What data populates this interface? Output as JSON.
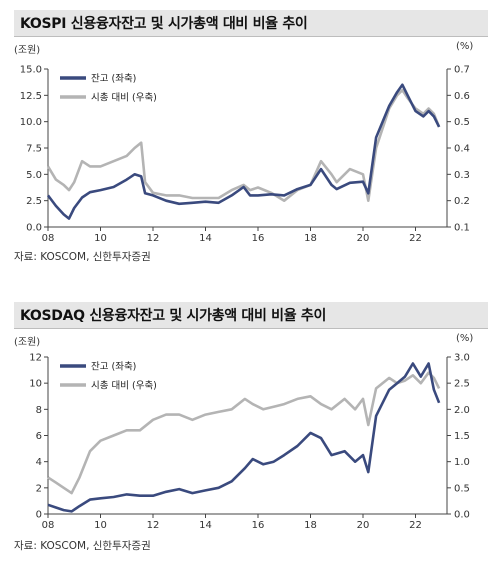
{
  "colors": {
    "navy": "#3a4a7e",
    "gray": "#b4b4b4",
    "axis": "#444444",
    "title_bg": "#e6e6e6"
  },
  "charts": [
    {
      "title": "KOSPI 신용융자잔고 및 시가총액 대비 비율 추이",
      "left_unit": "(조원)",
      "right_unit": "(%)",
      "source": "자료: KOSCOM, 신한투자증권"
    },
    {
      "title": "KOSDAQ 신용융자잔고 및 시가총액 대비 비율 추이",
      "left_unit": "(조원)",
      "right_unit": "(%)",
      "source": "자료: KOSCOM, 신한투자증권"
    }
  ],
  "chart_data": [
    {
      "type": "line",
      "title": "KOSPI 신용융자잔고 및 시가총액 대비 비율 추이",
      "x_ticks": [
        "08",
        "10",
        "12",
        "14",
        "16",
        "18",
        "20",
        "22"
      ],
      "xlim": [
        2008,
        2023.2
      ],
      "y_left_ticks": [
        "0.0",
        "2.5",
        "5.0",
        "7.5",
        "10.0",
        "12.5",
        "15.0"
      ],
      "ylim_left": [
        0,
        15
      ],
      "y_right_ticks": [
        "0.1",
        "0.2",
        "0.3",
        "0.4",
        "0.5",
        "0.6",
        "0.7"
      ],
      "ylim_right": [
        0.1,
        0.7
      ],
      "legend": {
        "position": "top-left"
      },
      "series": [
        {
          "name": "잔고 (좌축)",
          "axis": "left",
          "color": "#3a4a7e",
          "x": [
            2008.0,
            2008.3,
            2008.6,
            2008.8,
            2009.0,
            2009.3,
            2009.6,
            2010.0,
            2010.5,
            2011.0,
            2011.3,
            2011.55,
            2011.7,
            2012.0,
            2012.5,
            2013.0,
            2013.5,
            2014.0,
            2014.5,
            2015.0,
            2015.45,
            2015.7,
            2016.0,
            2016.5,
            2017.0,
            2017.5,
            2018.0,
            2018.4,
            2018.8,
            2019.0,
            2019.5,
            2020.0,
            2020.2,
            2020.5,
            2021.0,
            2021.3,
            2021.5,
            2021.7,
            2022.0,
            2022.3,
            2022.5,
            2022.7,
            2022.9
          ],
          "y": [
            3.0,
            2.0,
            1.2,
            0.8,
            1.8,
            2.8,
            3.3,
            3.5,
            3.8,
            4.5,
            5.0,
            4.8,
            3.2,
            3.0,
            2.5,
            2.2,
            2.3,
            2.4,
            2.3,
            3.0,
            3.8,
            3.0,
            3.0,
            3.1,
            3.0,
            3.6,
            4.0,
            5.5,
            4.0,
            3.6,
            4.2,
            4.3,
            3.2,
            8.5,
            11.5,
            12.8,
            13.5,
            12.5,
            11.0,
            10.5,
            11.0,
            10.5,
            9.5
          ]
        },
        {
          "name": "시총 대비 (우축)",
          "axis": "right",
          "color": "#b4b4b4",
          "x": [
            2008.0,
            2008.3,
            2008.6,
            2008.8,
            2009.0,
            2009.3,
            2009.6,
            2010.0,
            2010.5,
            2011.0,
            2011.3,
            2011.55,
            2011.7,
            2012.0,
            2012.5,
            2013.0,
            2013.5,
            2014.0,
            2014.5,
            2015.0,
            2015.45,
            2015.7,
            2016.0,
            2016.5,
            2017.0,
            2017.5,
            2018.0,
            2018.4,
            2018.8,
            2019.0,
            2019.5,
            2020.0,
            2020.2,
            2020.5,
            2021.0,
            2021.3,
            2021.5,
            2021.7,
            2022.0,
            2022.3,
            2022.5,
            2022.7,
            2022.9
          ],
          "y": [
            0.33,
            0.28,
            0.26,
            0.24,
            0.27,
            0.35,
            0.33,
            0.33,
            0.35,
            0.37,
            0.4,
            0.42,
            0.27,
            0.23,
            0.22,
            0.22,
            0.21,
            0.21,
            0.21,
            0.24,
            0.26,
            0.24,
            0.25,
            0.23,
            0.2,
            0.24,
            0.26,
            0.35,
            0.3,
            0.27,
            0.32,
            0.3,
            0.2,
            0.4,
            0.55,
            0.6,
            0.62,
            0.59,
            0.55,
            0.53,
            0.55,
            0.53,
            0.48
          ]
        }
      ]
    },
    {
      "type": "line",
      "title": "KOSDAQ 신용융자잔고 및 시가총액 대비 비율 추이",
      "x_ticks": [
        "08",
        "10",
        "12",
        "14",
        "16",
        "18",
        "20",
        "22"
      ],
      "xlim": [
        2008,
        2023.2
      ],
      "y_left_ticks": [
        "0",
        "2",
        "4",
        "6",
        "8",
        "10",
        "12"
      ],
      "ylim_left": [
        0,
        12
      ],
      "y_right_ticks": [
        "0.0",
        "0.5",
        "1.0",
        "1.5",
        "2.0",
        "2.5",
        "3.0"
      ],
      "ylim_right": [
        0,
        3
      ],
      "legend": {
        "position": "top-left"
      },
      "series": [
        {
          "name": "잔고 (좌축)",
          "axis": "left",
          "color": "#3a4a7e",
          "x": [
            2008.0,
            2008.3,
            2008.6,
            2008.9,
            2009.2,
            2009.6,
            2010.0,
            2010.5,
            2011.0,
            2011.5,
            2012.0,
            2012.5,
            2013.0,
            2013.5,
            2014.0,
            2014.5,
            2015.0,
            2015.5,
            2015.8,
            2016.2,
            2016.6,
            2017.0,
            2017.5,
            2018.0,
            2018.4,
            2018.8,
            2019.3,
            2019.7,
            2020.0,
            2020.2,
            2020.5,
            2021.0,
            2021.3,
            2021.6,
            2021.9,
            2022.2,
            2022.5,
            2022.7,
            2022.9
          ],
          "y": [
            0.7,
            0.5,
            0.3,
            0.2,
            0.6,
            1.1,
            1.2,
            1.3,
            1.5,
            1.4,
            1.4,
            1.7,
            1.9,
            1.6,
            1.8,
            2.0,
            2.5,
            3.5,
            4.2,
            3.8,
            4.0,
            4.5,
            5.2,
            6.2,
            5.8,
            4.5,
            4.8,
            4.0,
            4.5,
            3.2,
            7.5,
            9.5,
            10.0,
            10.5,
            11.5,
            10.5,
            11.5,
            9.5,
            8.5
          ]
        },
        {
          "name": "시총 대비 (우축)",
          "axis": "right",
          "color": "#b4b4b4",
          "x": [
            2008.0,
            2008.3,
            2008.6,
            2008.9,
            2009.2,
            2009.6,
            2010.0,
            2010.5,
            2011.0,
            2011.5,
            2012.0,
            2012.5,
            2013.0,
            2013.5,
            2014.0,
            2014.5,
            2015.0,
            2015.5,
            2015.8,
            2016.2,
            2016.6,
            2017.0,
            2017.5,
            2018.0,
            2018.4,
            2018.8,
            2019.3,
            2019.7,
            2020.0,
            2020.2,
            2020.5,
            2021.0,
            2021.3,
            2021.6,
            2021.9,
            2022.2,
            2022.5,
            2022.7,
            2022.9
          ],
          "y": [
            0.7,
            0.6,
            0.5,
            0.4,
            0.7,
            1.2,
            1.4,
            1.5,
            1.6,
            1.6,
            1.8,
            1.9,
            1.9,
            1.8,
            1.9,
            1.95,
            2.0,
            2.2,
            2.1,
            2.0,
            2.05,
            2.1,
            2.2,
            2.25,
            2.1,
            2.0,
            2.2,
            2.0,
            2.2,
            1.7,
            2.4,
            2.6,
            2.5,
            2.55,
            2.65,
            2.5,
            2.7,
            2.6,
            2.4
          ]
        }
      ]
    }
  ]
}
